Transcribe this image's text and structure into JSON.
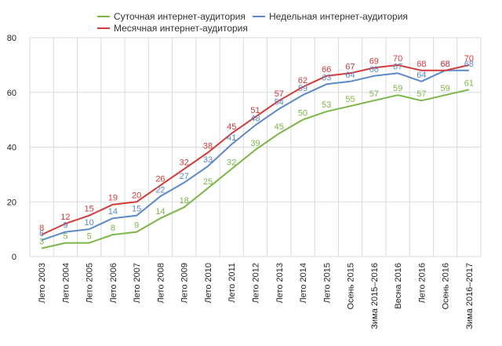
{
  "chart_data": {
    "type": "line",
    "categories": [
      "Лето 2003",
      "Лето 2004",
      "Лето 2005",
      "Лето 2006",
      "Лето 2007",
      "Лето 2008",
      "Лето 2009",
      "Лето 2010",
      "Лето 2011",
      "Лето 2012",
      "Лето 2013",
      "Лето 2014",
      "Лето 2015",
      "Осень 2015",
      "Зима 2015–2016",
      "Весна 2016",
      "Лето 2016",
      "Осень 2016",
      "Зима 2016–2017"
    ],
    "series": [
      {
        "name": "Суточная интернет-аудитория",
        "color": "#7ab648",
        "values": [
          3,
          5,
          5,
          8,
          9,
          14,
          18,
          25,
          32,
          39,
          45,
          50,
          53,
          55,
          57,
          59,
          57,
          59,
          61
        ]
      },
      {
        "name": "Недельная интернет-аудитория",
        "color": "#5b89c8",
        "values": [
          6,
          9,
          10,
          14,
          15,
          22,
          27,
          33,
          41,
          48,
          54,
          59,
          63,
          64,
          66,
          67,
          64,
          68,
          68
        ]
      },
      {
        "name": "Месячная интернет-аудитория",
        "color": "#d23a3a",
        "values": [
          8,
          12,
          15,
          19,
          20,
          26,
          32,
          38,
          45,
          51,
          57,
          62,
          66,
          67,
          69,
          70,
          68,
          68,
          70
        ]
      }
    ],
    "ylim": [
      0,
      80
    ],
    "yticks": [
      0,
      20,
      40,
      60,
      80
    ],
    "grid": true,
    "legend_position": "top"
  }
}
